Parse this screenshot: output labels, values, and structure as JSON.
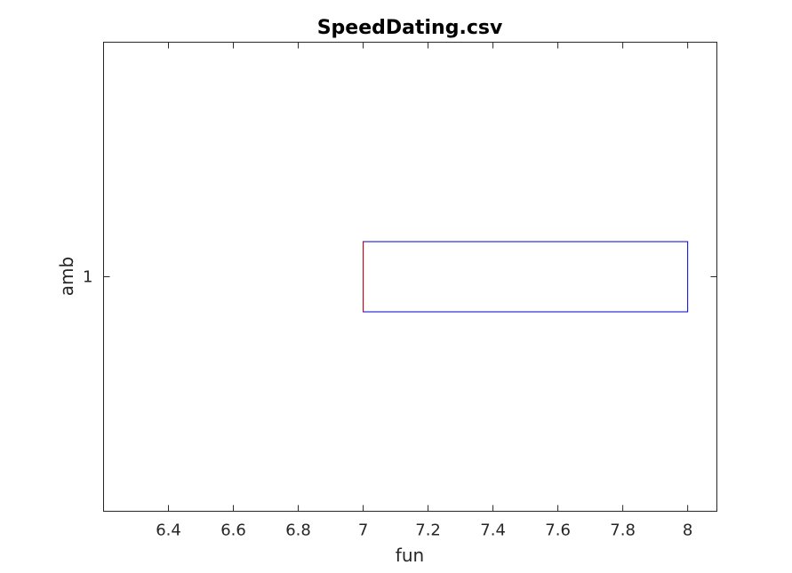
{
  "chart_data": {
    "type": "boxplot",
    "orientation": "horizontal",
    "title": "SpeedDating.csv",
    "xlabel": "fun",
    "ylabel": "amb",
    "xlim": [
      6.2,
      8.09
    ],
    "ylim": [
      0.5,
      1.5
    ],
    "x_ticks": [
      6.4,
      6.6,
      6.8,
      7,
      7.2,
      7.4,
      7.6,
      7.8,
      8
    ],
    "y_ticks": [
      1
    ],
    "categories": [
      "1"
    ],
    "boxes": [
      {
        "category": "1",
        "min": 7,
        "q1": 7,
        "median": 7,
        "q3": 8,
        "max": 8
      }
    ],
    "grid": false,
    "colors": {
      "box": "#0000cc",
      "median": "#cc0000",
      "axis": "#262626"
    }
  }
}
